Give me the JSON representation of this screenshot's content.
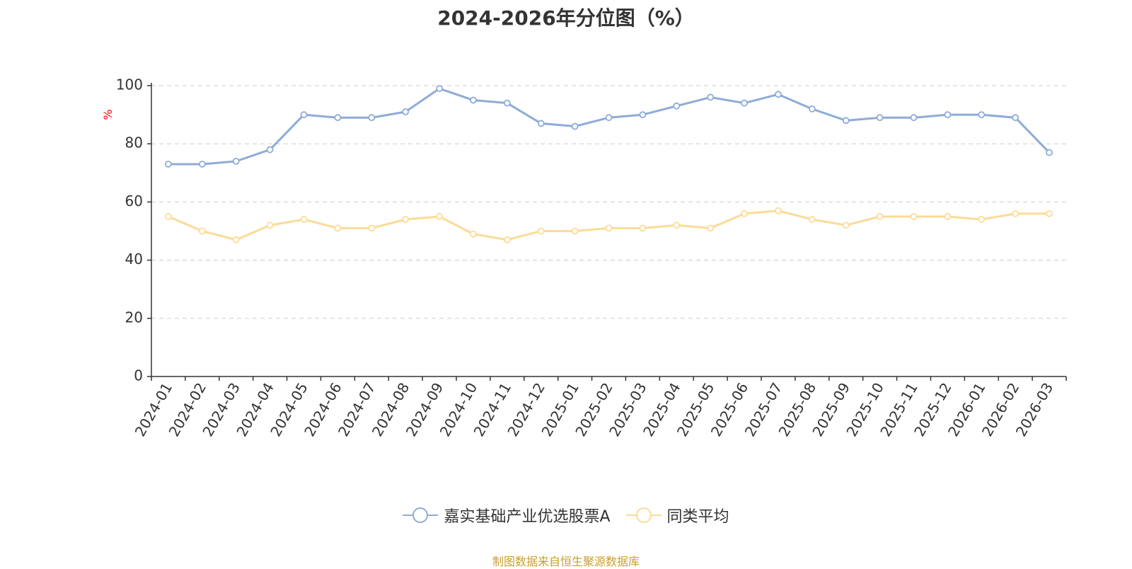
{
  "chart_data": {
    "type": "line",
    "title": "2024-2026年分位图（%）",
    "ylabel": "%",
    "ylim": [
      0,
      100
    ],
    "yticks": [
      0,
      20,
      40,
      60,
      80,
      100
    ],
    "grid": true,
    "legend_position": "bottom",
    "categories": [
      "2024-01",
      "2024-02",
      "2024-03",
      "2024-04",
      "2024-05",
      "2024-06",
      "2024-07",
      "2024-08",
      "2024-09",
      "2024-10",
      "2024-11",
      "2024-12",
      "2025-01",
      "2025-02",
      "2025-03",
      "2025-04",
      "2025-05",
      "2025-06",
      "2025-07",
      "2025-08",
      "2025-09",
      "2025-10",
      "2025-11",
      "2025-12",
      "2026-01",
      "2026-02",
      "2026-03"
    ],
    "series": [
      {
        "name": "嘉实基础产业优选股票A",
        "color": "#8eabd9",
        "values": [
          73,
          73,
          74,
          78,
          90,
          89,
          89,
          91,
          99,
          95,
          94,
          87,
          86,
          89,
          90,
          93,
          96,
          94,
          97,
          92,
          88,
          89,
          89,
          90,
          90,
          89,
          77
        ]
      },
      {
        "name": "同类平均",
        "color": "#fcdb97",
        "values": [
          55,
          50,
          47,
          52,
          54,
          51,
          51,
          54,
          55,
          49,
          47,
          50,
          50,
          51,
          51,
          52,
          51,
          56,
          57,
          54,
          52,
          55,
          55,
          55,
          54,
          56,
          56
        ]
      }
    ]
  },
  "source_note": "制图数据来自恒生聚源数据库",
  "colors": {
    "ylabel": "#ff0000",
    "source_note": "#c8a030"
  }
}
